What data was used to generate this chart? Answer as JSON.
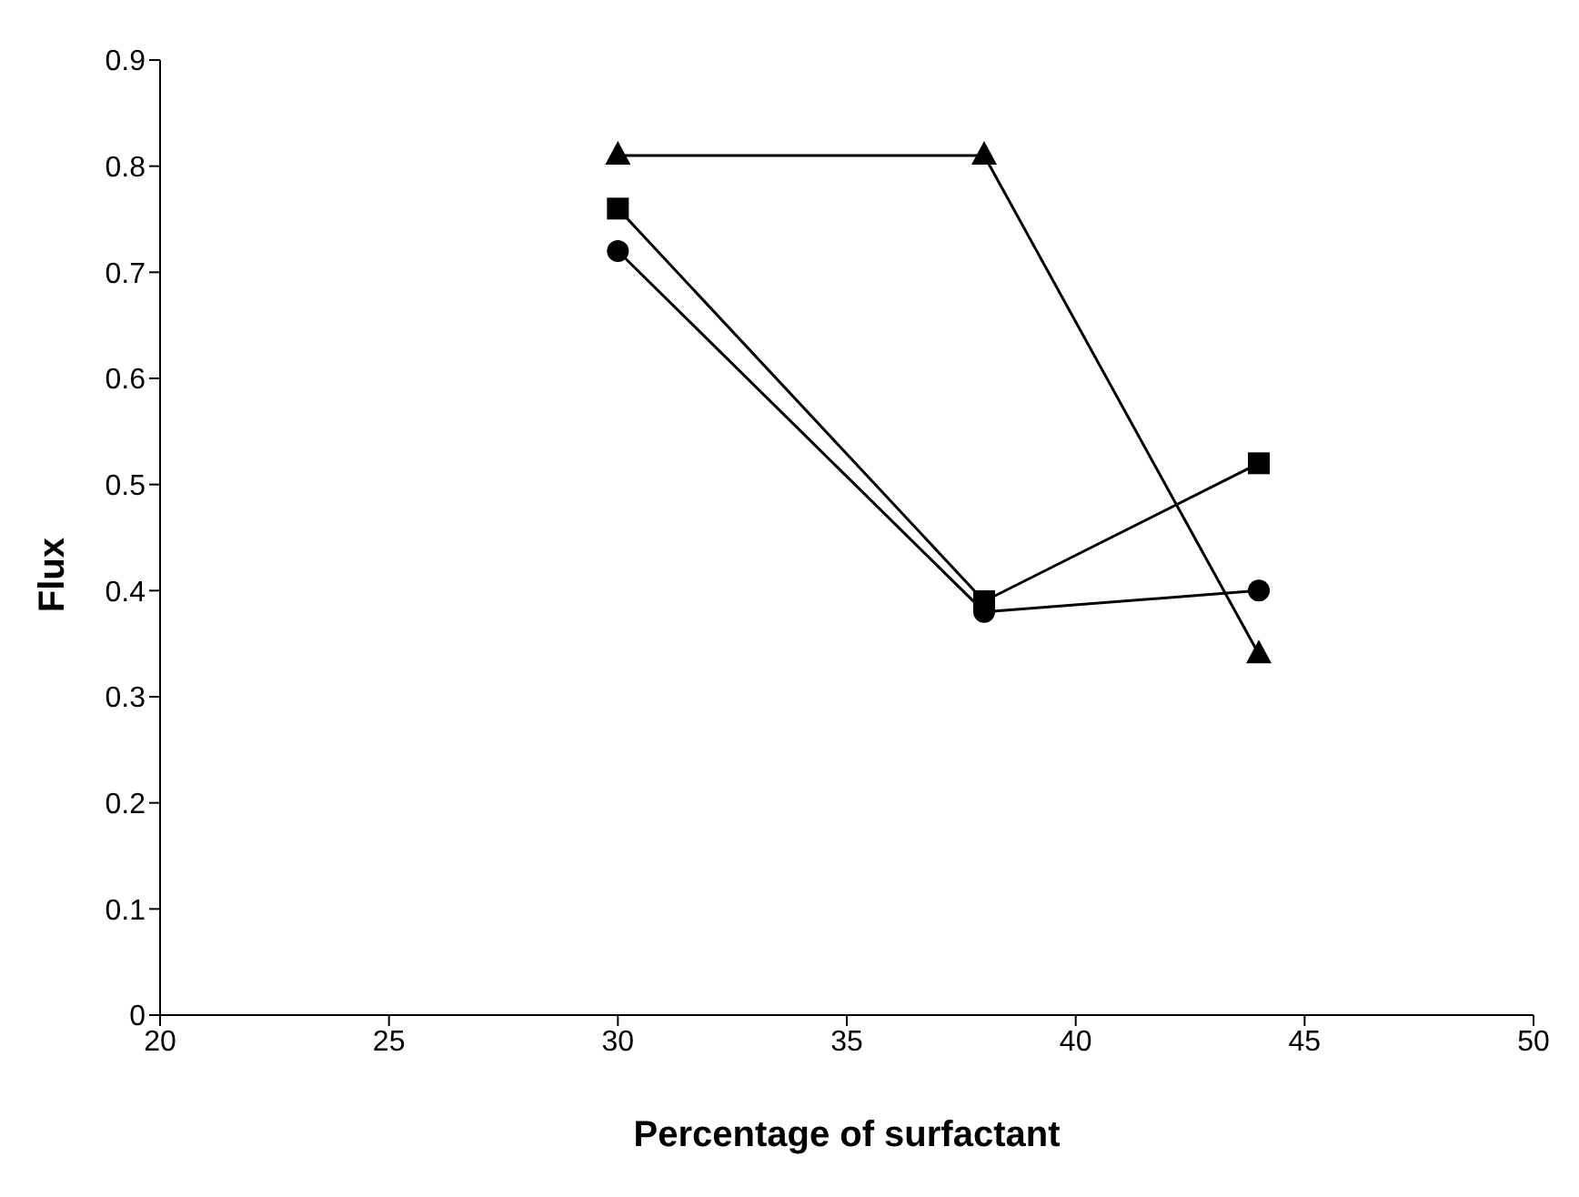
{
  "chart_data": {
    "type": "line",
    "xlabel": "Percentage of surfactant",
    "ylabel": "Flux",
    "x": [
      30,
      38,
      44
    ],
    "series": [
      {
        "color": "#000000",
        "marker": "triangle",
        "values": [
          0.81,
          0.81,
          0.34
        ]
      },
      {
        "color": "#000000",
        "marker": "square",
        "values": [
          0.76,
          0.39,
          0.52
        ]
      },
      {
        "color": "#000000",
        "marker": "circle",
        "values": [
          0.72,
          0.38,
          0.4
        ]
      }
    ],
    "xlim": [
      20,
      50
    ],
    "xticks": [
      20,
      25,
      30,
      35,
      40,
      45,
      50
    ],
    "ylim": [
      0,
      0.9
    ],
    "yticks": [
      0,
      0.1,
      0.2,
      0.3,
      0.4,
      0.5,
      0.6,
      0.7,
      0.8,
      0.9
    ],
    "grid": false,
    "legend": false,
    "line_style": "solid"
  }
}
